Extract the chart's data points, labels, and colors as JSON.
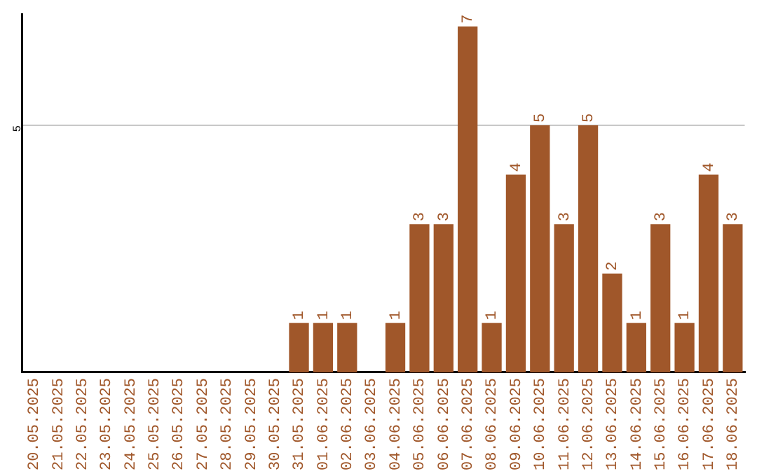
{
  "chart_data": {
    "type": "bar",
    "categories": [
      "20.05.2025",
      "21.05.2025",
      "22.05.2025",
      "23.05.2025",
      "24.05.2025",
      "25.05.2025",
      "26.05.2025",
      "27.05.2025",
      "28.05.2025",
      "29.05.2025",
      "30.05.2025",
      "31.05.2025",
      "01.06.2025",
      "02.06.2025",
      "03.06.2025",
      "04.06.2025",
      "05.06.2025",
      "06.06.2025",
      "07.06.2025",
      "08.06.2025",
      "09.06.2025",
      "10.06.2025",
      "11.06.2025",
      "12.06.2025",
      "13.06.2025",
      "14.06.2025",
      "15.06.2025",
      "16.06.2025",
      "17.06.2025",
      "18.06.2025"
    ],
    "values": [
      0,
      0,
      0,
      0,
      0,
      0,
      0,
      0,
      0,
      0,
      0,
      1,
      1,
      1,
      0,
      1,
      3,
      3,
      7,
      1,
      4,
      5,
      3,
      5,
      2,
      1,
      3,
      1,
      4,
      3
    ],
    "value_labels": [
      null,
      null,
      null,
      null,
      null,
      null,
      null,
      null,
      null,
      null,
      null,
      "1",
      "1",
      "1",
      null,
      "1",
      "3",
      "3",
      "7",
      "1",
      "4",
      "5",
      "3",
      "5",
      "2",
      "1",
      "3",
      "1",
      "4",
      "3"
    ],
    "color": "#a0572a",
    "ylim": [
      0,
      7.25
    ],
    "yticks": [
      5
    ],
    "grid": "y",
    "legend": false
  }
}
